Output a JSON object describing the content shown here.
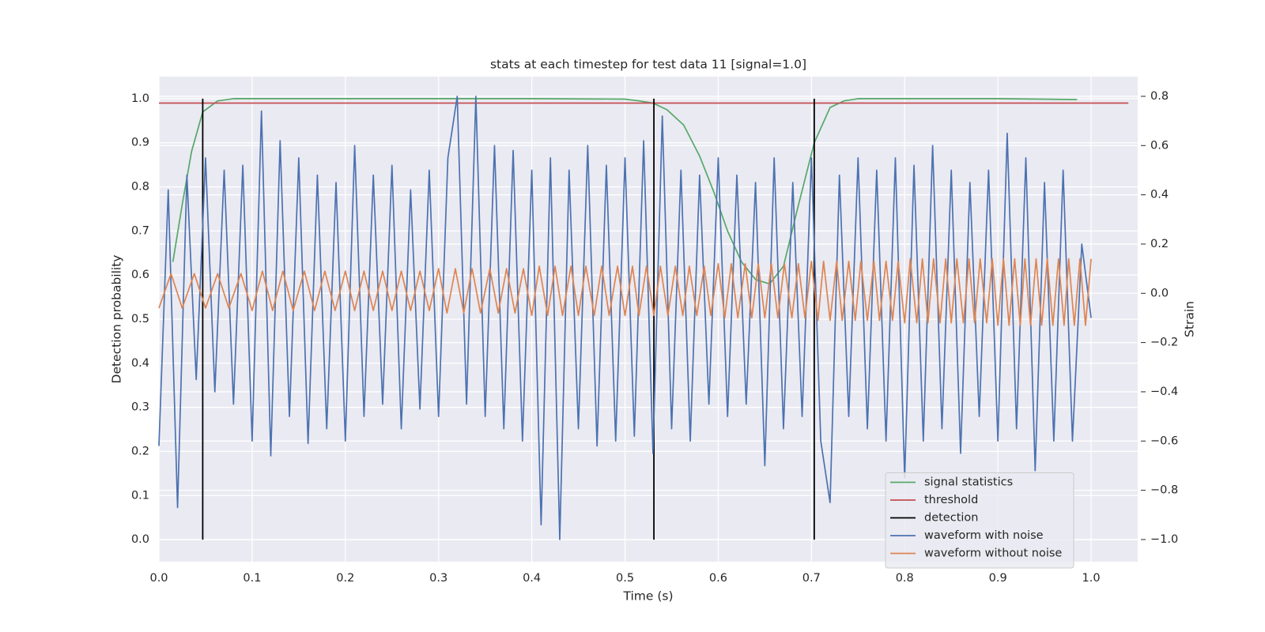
{
  "chart_data": {
    "type": "line",
    "title": "stats at each timestep for test data 11 [signal=1.0]",
    "xlabel": "Time (s)",
    "ylabel": "Detection probability",
    "y2label": "Strain",
    "xlim": [
      0,
      1.05
    ],
    "xticks": [
      {
        "value": 0,
        "label": "0.0"
      },
      0.1,
      0.2,
      0.3,
      0.4,
      0.5,
      0.6,
      0.7,
      0.8,
      0.9,
      {
        "value": 1,
        "label": "1.0"
      }
    ],
    "ylim": [
      -0.05,
      1.05
    ],
    "yticks": [
      {
        "value": 0,
        "label": "0.0"
      },
      0.1,
      0.2,
      0.3,
      0.4,
      0.5,
      0.6,
      0.7,
      0.8,
      0.9,
      {
        "value": 1,
        "label": "1.0"
      }
    ],
    "y2lim": [
      -1.09,
      0.88
    ],
    "y2ticks": [
      {
        "value": -1,
        "label": "−1.0"
      },
      {
        "value": -0.8,
        "label": "−0.8"
      },
      {
        "value": -0.6,
        "label": "−0.6"
      },
      {
        "value": -0.4,
        "label": "−0.4"
      },
      {
        "value": -0.2,
        "label": "−0.2"
      },
      {
        "value": 0,
        "label": "0.0"
      },
      0.2,
      0.4,
      0.6,
      0.8
    ],
    "grid": true,
    "legend": "lower right",
    "series": [
      {
        "name": "signal statistics",
        "color": "#55a868",
        "axis": "y",
        "x": [
          0.015,
          0.025,
          0.035,
          0.047,
          0.063,
          0.08,
          0.1,
          0.2,
          0.3,
          0.4,
          0.5,
          0.515,
          0.53,
          0.545,
          0.563,
          0.58,
          0.595,
          0.61,
          0.625,
          0.64,
          0.655,
          0.67,
          0.685,
          0.703,
          0.72,
          0.735,
          0.75,
          0.8,
          0.9,
          0.985
        ],
        "values": [
          0.63,
          0.76,
          0.88,
          0.97,
          0.995,
          1.0,
          1.0,
          1.0,
          1.0,
          1.0,
          0.999,
          0.995,
          0.99,
          0.975,
          0.94,
          0.87,
          0.79,
          0.7,
          0.63,
          0.59,
          0.58,
          0.62,
          0.75,
          0.9,
          0.98,
          0.995,
          1.0,
          1.0,
          1.0,
          0.998
        ]
      },
      {
        "name": "threshold",
        "color": "#c44e52",
        "axis": "y",
        "x": [
          0,
          1.04
        ],
        "values": [
          0.99,
          0.99
        ]
      },
      {
        "name": "detection",
        "color": "#000000",
        "axis": "y",
        "kind": "vlines",
        "x": [
          0.047,
          0.531,
          0.703
        ],
        "low": [
          0,
          0,
          0
        ],
        "high": [
          1,
          1,
          1
        ]
      },
      {
        "name": "waveform with noise",
        "color": "#4c72b0",
        "axis": "y2",
        "x": [
          0,
          0.01,
          0.02,
          0.03,
          0.04,
          0.05,
          0.06,
          0.07,
          0.08,
          0.09,
          0.1,
          0.11,
          0.12,
          0.13,
          0.14,
          0.15,
          0.16,
          0.17,
          0.18,
          0.19,
          0.2,
          0.21,
          0.22,
          0.23,
          0.24,
          0.25,
          0.26,
          0.27,
          0.28,
          0.29,
          0.3,
          0.31,
          0.32,
          0.33,
          0.34,
          0.35,
          0.36,
          0.37,
          0.38,
          0.39,
          0.4,
          0.41,
          0.42,
          0.43,
          0.44,
          0.45,
          0.46,
          0.47,
          0.48,
          0.49,
          0.5,
          0.51,
          0.52,
          0.53,
          0.54,
          0.55,
          0.56,
          0.57,
          0.58,
          0.59,
          0.6,
          0.61,
          0.62,
          0.63,
          0.64,
          0.65,
          0.66,
          0.67,
          0.68,
          0.69,
          0.7,
          0.71,
          0.72,
          0.73,
          0.74,
          0.75,
          0.76,
          0.77,
          0.78,
          0.79,
          0.8,
          0.81,
          0.82,
          0.83,
          0.84,
          0.85,
          0.86,
          0.87,
          0.88,
          0.89,
          0.9,
          0.91,
          0.92,
          0.93,
          0.94,
          0.95,
          0.96,
          0.97,
          0.98,
          0.99,
          1.0
        ],
        "values": [
          -0.62,
          0.42,
          -0.87,
          0.48,
          -0.35,
          0.55,
          -0.4,
          0.5,
          -0.45,
          0.52,
          -0.6,
          0.74,
          -0.66,
          0.62,
          -0.5,
          0.55,
          -0.61,
          0.48,
          -0.55,
          0.45,
          -0.6,
          0.6,
          -0.5,
          0.48,
          -0.45,
          0.52,
          -0.55,
          0.42,
          -0.47,
          0.5,
          -0.5,
          0.55,
          0.8,
          -0.45,
          0.8,
          -0.5,
          0.6,
          -0.55,
          0.58,
          -0.6,
          0.5,
          -0.94,
          0.55,
          -1.0,
          0.5,
          -0.55,
          0.6,
          -0.62,
          0.52,
          -0.6,
          0.55,
          -0.58,
          0.62,
          -0.65,
          0.72,
          -0.55,
          0.5,
          -0.6,
          0.48,
          -0.45,
          0.55,
          -0.5,
          0.48,
          -0.45,
          0.45,
          -0.7,
          0.55,
          -0.55,
          0.45,
          -0.5,
          0.55,
          -0.6,
          -0.85,
          0.48,
          -0.5,
          0.55,
          -0.55,
          0.5,
          -0.6,
          0.55,
          -0.75,
          0.52,
          -0.6,
          0.6,
          -0.55,
          0.5,
          -0.65,
          0.45,
          -0.5,
          0.5,
          -0.6,
          0.65,
          -0.55,
          0.55,
          -0.72,
          0.45,
          -0.6,
          0.5,
          -0.6,
          0.2,
          -0.1
        ]
      },
      {
        "name": "waveform without noise",
        "color": "#dd8452",
        "axis": "y2",
        "x": [
          0,
          0.013,
          0.025,
          0.038,
          0.05,
          0.063,
          0.075,
          0.088,
          0.1,
          0.111,
          0.122,
          0.133,
          0.144,
          0.156,
          0.167,
          0.178,
          0.189,
          0.2,
          0.21,
          0.22,
          0.23,
          0.24,
          0.25,
          0.26,
          0.27,
          0.28,
          0.29,
          0.3,
          0.309,
          0.318,
          0.327,
          0.336,
          0.345,
          0.355,
          0.364,
          0.373,
          0.382,
          0.391,
          0.4,
          0.408,
          0.417,
          0.425,
          0.433,
          0.442,
          0.45,
          0.458,
          0.467,
          0.475,
          0.483,
          0.492,
          0.5,
          0.508,
          0.515,
          0.523,
          0.531,
          0.538,
          0.546,
          0.554,
          0.562,
          0.569,
          0.577,
          0.585,
          0.592,
          0.6,
          0.607,
          0.614,
          0.621,
          0.629,
          0.636,
          0.643,
          0.65,
          0.657,
          0.664,
          0.671,
          0.679,
          0.686,
          0.693,
          0.7,
          0.707,
          0.713,
          0.72,
          0.727,
          0.733,
          0.74,
          0.747,
          0.753,
          0.76,
          0.767,
          0.773,
          0.78,
          0.787,
          0.793,
          0.8,
          0.806,
          0.813,
          0.819,
          0.825,
          0.831,
          0.838,
          0.844,
          0.85,
          0.856,
          0.863,
          0.869,
          0.875,
          0.881,
          0.888,
          0.894,
          0.9,
          0.906,
          0.912,
          0.918,
          0.924,
          0.929,
          0.935,
          0.941,
          0.947,
          0.953,
          0.959,
          0.965,
          0.971,
          0.976,
          0.982,
          0.988,
          0.994,
          1.0
        ],
        "values": [
          -0.06,
          0.08,
          -0.06,
          0.08,
          -0.06,
          0.08,
          -0.06,
          0.08,
          -0.07,
          0.09,
          -0.07,
          0.09,
          -0.07,
          0.09,
          -0.07,
          0.09,
          -0.07,
          0.09,
          -0.07,
          0.09,
          -0.07,
          0.09,
          -0.07,
          0.09,
          -0.07,
          0.09,
          -0.07,
          0.1,
          -0.08,
          0.1,
          -0.08,
          0.1,
          -0.08,
          0.1,
          -0.08,
          0.1,
          -0.08,
          0.1,
          -0.09,
          0.11,
          -0.09,
          0.11,
          -0.09,
          0.11,
          -0.09,
          0.11,
          -0.09,
          0.11,
          -0.09,
          0.11,
          -0.09,
          0.11,
          -0.09,
          0.11,
          -0.09,
          0.11,
          -0.09,
          0.11,
          -0.09,
          0.11,
          -0.09,
          0.11,
          -0.09,
          0.12,
          -0.1,
          0.12,
          -0.1,
          0.12,
          -0.1,
          0.12,
          -0.1,
          0.12,
          -0.1,
          0.12,
          -0.1,
          0.12,
          -0.1,
          0.13,
          -0.11,
          0.13,
          -0.11,
          0.13,
          -0.11,
          0.13,
          -0.11,
          0.13,
          -0.11,
          0.13,
          -0.11,
          0.13,
          -0.11,
          0.13,
          -0.12,
          0.14,
          -0.12,
          0.14,
          -0.12,
          0.14,
          -0.12,
          0.14,
          -0.12,
          0.14,
          -0.12,
          0.14,
          -0.12,
          0.14,
          -0.12,
          0.14,
          -0.13,
          0.14,
          -0.13,
          0.14,
          -0.13,
          0.14,
          -0.13,
          0.14,
          -0.13,
          0.14,
          -0.13,
          0.14,
          -0.13,
          0.14,
          -0.13,
          0.14,
          -0.13,
          0.14
        ]
      }
    ]
  }
}
